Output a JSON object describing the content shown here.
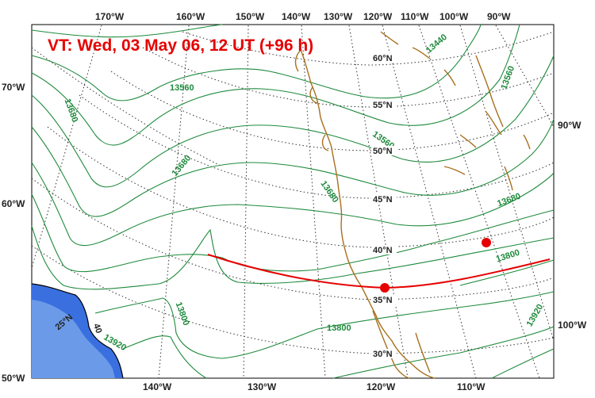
{
  "title": "VT:  Wed, 03 May 06, 12 UT (+96 h)",
  "colors": {
    "contour": "#1e8a3c",
    "coast": "#a8701e",
    "trajectory": "#e60000",
    "ocean_fill": "#3a6fe0",
    "ocean_fill_light": "#6b9ae8"
  },
  "top_lon_labels": [
    "170°W",
    "160°W",
    "150°W",
    "140°W",
    "130°W",
    "120°W",
    "110°W",
    "100°W",
    "90°W"
  ],
  "bottom_lon_labels": [
    "140°W",
    "130°W",
    "120°W",
    "110°W"
  ],
  "left_lon_labels": [
    "70°W",
    "60°W",
    "50°W"
  ],
  "right_lon_labels": [
    "90°W",
    "100°W"
  ],
  "lat_labels": [
    "60°N",
    "55°N",
    "50°N",
    "45°N",
    "40°N",
    "35°N",
    "30°N"
  ],
  "inner_labels": [
    "25°N",
    "40"
  ],
  "contour_labels": [
    "13440",
    "13560",
    "13680",
    "13560",
    "13680",
    "13680",
    "13560",
    "13680",
    "13800",
    "13800",
    "13800",
    "13920",
    "13920"
  ],
  "trajectory_points": 3
}
